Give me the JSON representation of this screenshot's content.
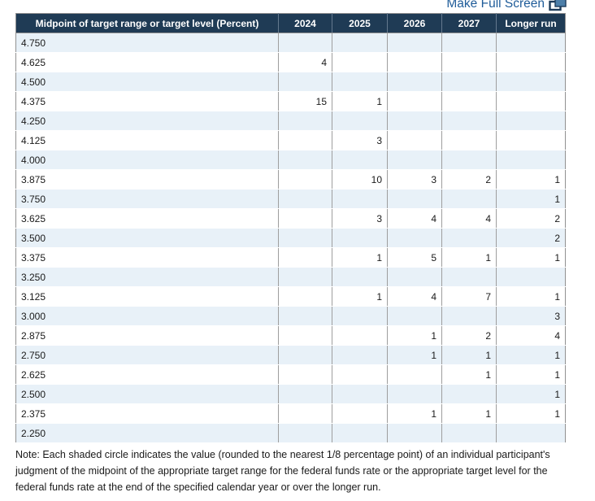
{
  "toolbar": {
    "fullscreen_label": "Make Full Screen"
  },
  "colors": {
    "header_bg": "#1f3b55",
    "alt_row_bg": "#e8f1f8",
    "link_blue": "#1f5c99",
    "icon_fill": "#4d7fa9",
    "border_gray": "#919191"
  },
  "table": {
    "header_label": "Midpoint of target range or target level (Percent)",
    "year_columns": [
      "2024",
      "2025",
      "2026",
      "2027",
      "Longer run"
    ],
    "rows": [
      {
        "rate": "4.750",
        "values": [
          "",
          "",
          "",
          "",
          ""
        ]
      },
      {
        "rate": "4.625",
        "values": [
          "4",
          "",
          "",
          "",
          ""
        ]
      },
      {
        "rate": "4.500",
        "values": [
          "",
          "",
          "",
          "",
          ""
        ]
      },
      {
        "rate": "4.375",
        "values": [
          "15",
          "1",
          "",
          "",
          ""
        ]
      },
      {
        "rate": "4.250",
        "values": [
          "",
          "",
          "",
          "",
          ""
        ]
      },
      {
        "rate": "4.125",
        "values": [
          "",
          "3",
          "",
          "",
          ""
        ]
      },
      {
        "rate": "4.000",
        "values": [
          "",
          "",
          "",
          "",
          ""
        ]
      },
      {
        "rate": "3.875",
        "values": [
          "",
          "10",
          "3",
          "2",
          "1"
        ]
      },
      {
        "rate": "3.750",
        "values": [
          "",
          "",
          "",
          "",
          "1"
        ]
      },
      {
        "rate": "3.625",
        "values": [
          "",
          "3",
          "4",
          "4",
          "2"
        ]
      },
      {
        "rate": "3.500",
        "values": [
          "",
          "",
          "",
          "",
          "2"
        ]
      },
      {
        "rate": "3.375",
        "values": [
          "",
          "1",
          "5",
          "1",
          "1"
        ]
      },
      {
        "rate": "3.250",
        "values": [
          "",
          "",
          "",
          "",
          ""
        ]
      },
      {
        "rate": "3.125",
        "values": [
          "",
          "1",
          "4",
          "7",
          "1"
        ]
      },
      {
        "rate": "3.000",
        "values": [
          "",
          "",
          "",
          "",
          "3"
        ]
      },
      {
        "rate": "2.875",
        "values": [
          "",
          "",
          "1",
          "2",
          "4"
        ]
      },
      {
        "rate": "2.750",
        "values": [
          "",
          "",
          "1",
          "1",
          "1"
        ]
      },
      {
        "rate": "2.625",
        "values": [
          "",
          "",
          "",
          "1",
          "1"
        ]
      },
      {
        "rate": "2.500",
        "values": [
          "",
          "",
          "",
          "",
          "1"
        ]
      },
      {
        "rate": "2.375",
        "values": [
          "",
          "",
          "1",
          "1",
          "1"
        ]
      },
      {
        "rate": "2.250",
        "values": [
          "",
          "",
          "",
          "",
          ""
        ]
      }
    ]
  },
  "note": "Note: Each shaded circle indicates the value (rounded to the nearest 1/8 percentage point) of an individual participant's judgment of the midpoint of the appropriate target range for the federal funds rate or the appropriate target level for the federal funds rate at the end of the specified calendar year or over the longer run."
}
